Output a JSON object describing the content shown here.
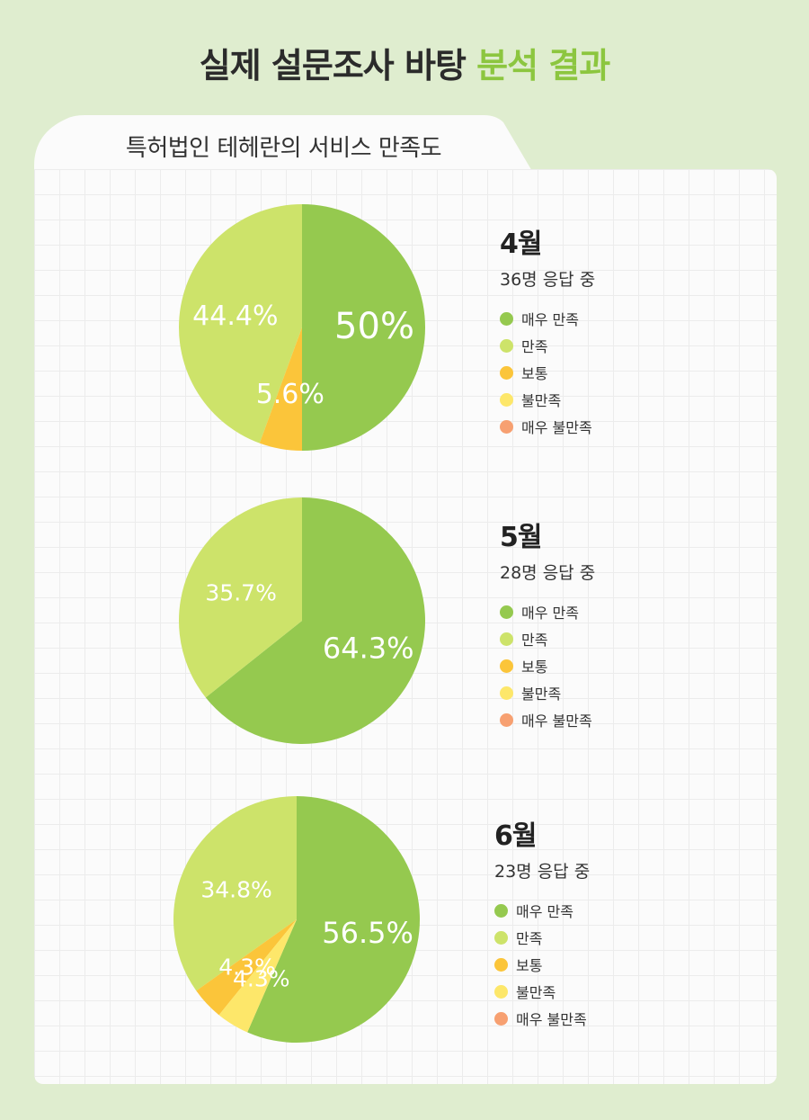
{
  "header": {
    "title_main": "실제 설문조사 바탕 ",
    "title_accent": "분석 결과"
  },
  "tab": {
    "label": "특허법인 테헤란의 서비스 만족도"
  },
  "legend_labels": [
    "매우 만족",
    "만족",
    "보통",
    "불만족",
    "매우 불만족"
  ],
  "colors": {
    "very_satisfied": "#95c94f",
    "satisfied": "#cde36a",
    "neutral": "#fbc53a",
    "dissatisfied": "#fde76a",
    "very_dissatisfied": "#f7a071",
    "accent": "#8cc63f",
    "background": "#dfedcf"
  },
  "chart_data": [
    {
      "type": "pie",
      "month": "4월",
      "respondents": "36명 응답 중",
      "categories": [
        "매우 만족",
        "만족",
        "보통",
        "불만족",
        "매우 불만족"
      ],
      "values": [
        50,
        44.4,
        5.6,
        0,
        0
      ],
      "labels": [
        "50%",
        "44.4%",
        "5.6%",
        "",
        ""
      ]
    },
    {
      "type": "pie",
      "month": "5월",
      "respondents": "28명 응답 중",
      "categories": [
        "매우 만족",
        "만족",
        "보통",
        "불만족",
        "매우 불만족"
      ],
      "values": [
        64.3,
        35.7,
        0,
        0,
        0
      ],
      "labels": [
        "64.3%",
        "35.7%",
        "",
        "",
        ""
      ]
    },
    {
      "type": "pie",
      "month": "6월",
      "respondents": "23명 응답 중",
      "categories": [
        "매우 만족",
        "만족",
        "보통",
        "불만족",
        "매우 불만족"
      ],
      "values": [
        56.5,
        34.8,
        4.3,
        4.3,
        0
      ],
      "labels": [
        "56.5%",
        "34.8%",
        "4.3%",
        "4.3%",
        ""
      ]
    }
  ]
}
